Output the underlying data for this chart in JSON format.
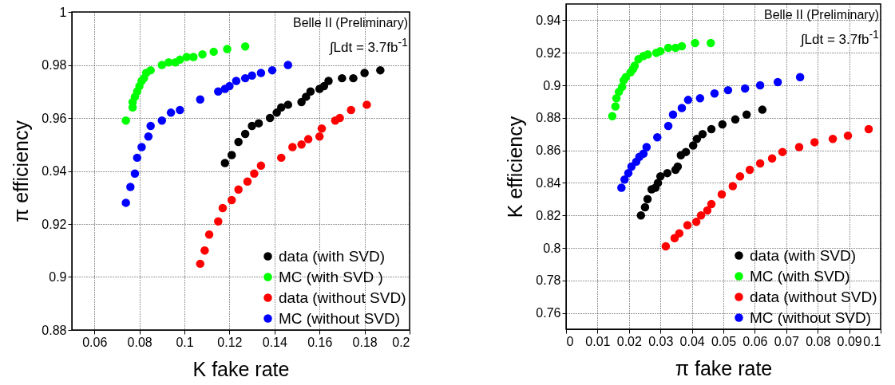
{
  "chart_data": [
    {
      "type": "scatter",
      "xlabel": "K fake rate",
      "ylabel": "π efficiency",
      "xlim": [
        0.05,
        0.2
      ],
      "ylim": [
        0.88,
        1
      ],
      "xticks": [
        0.06,
        0.08,
        0.1,
        0.12,
        0.14,
        0.16,
        0.18,
        0.2
      ],
      "yticks": [
        0.88,
        0.9,
        0.92,
        0.94,
        0.96,
        0.98,
        1
      ],
      "grid": true,
      "legend": "bottom right",
      "marker": "circle",
      "annotations": [
        "Belle II  (Preliminary)",
        "∫Ldt = 3.7fb$^{-1}$"
      ],
      "series": [
        {
          "name": "data (with SVD)",
          "color": "#000000",
          "x": [
            0.118,
            0.121,
            0.124,
            0.127,
            0.13,
            0.133,
            0.138,
            0.141,
            0.143,
            0.146,
            0.152,
            0.154,
            0.156,
            0.16,
            0.162,
            0.164,
            0.17,
            0.175,
            0.18,
            0.187
          ],
          "values": [
            0.943,
            0.946,
            0.951,
            0.954,
            0.957,
            0.958,
            0.96,
            0.962,
            0.964,
            0.965,
            0.966,
            0.968,
            0.97,
            0.971,
            0.972,
            0.974,
            0.975,
            0.975,
            0.977,
            0.978
          ]
        },
        {
          "name": "MC (with SVD )",
          "color": "#00ff00",
          "x": [
            0.074,
            0.077,
            0.077,
            0.078,
            0.079,
            0.08,
            0.081,
            0.082,
            0.083,
            0.085,
            0.09,
            0.093,
            0.096,
            0.098,
            0.101,
            0.104,
            0.108,
            0.113,
            0.119,
            0.127
          ],
          "values": [
            0.959,
            0.964,
            0.966,
            0.968,
            0.97,
            0.972,
            0.974,
            0.975,
            0.977,
            0.978,
            0.98,
            0.981,
            0.981,
            0.982,
            0.983,
            0.983,
            0.984,
            0.985,
            0.986,
            0.987
          ]
        },
        {
          "name": "data (without SVD)",
          "color": "#ff0000",
          "x": [
            0.107,
            0.109,
            0.111,
            0.115,
            0.117,
            0.121,
            0.124,
            0.128,
            0.131,
            0.134,
            0.143,
            0.148,
            0.152,
            0.155,
            0.16,
            0.161,
            0.167,
            0.169,
            0.174,
            0.181
          ],
          "values": [
            0.905,
            0.91,
            0.916,
            0.921,
            0.926,
            0.929,
            0.933,
            0.936,
            0.939,
            0.942,
            0.945,
            0.949,
            0.95,
            0.952,
            0.953,
            0.956,
            0.959,
            0.96,
            0.963,
            0.965
          ]
        },
        {
          "name": "MC (without SVD)",
          "color": "#0000ff",
          "x": [
            0.074,
            0.076,
            0.078,
            0.079,
            0.081,
            0.084,
            0.085,
            0.09,
            0.094,
            0.098,
            0.107,
            0.115,
            0.118,
            0.12,
            0.123,
            0.127,
            0.13,
            0.134,
            0.139,
            0.146
          ],
          "values": [
            0.928,
            0.934,
            0.939,
            0.945,
            0.949,
            0.953,
            0.957,
            0.959,
            0.962,
            0.963,
            0.967,
            0.97,
            0.971,
            0.972,
            0.974,
            0.975,
            0.976,
            0.977,
            0.978,
            0.98
          ]
        }
      ]
    },
    {
      "type": "scatter",
      "xlabel": "π fake rate",
      "ylabel": "K efficiency",
      "xlim": [
        0,
        0.1
      ],
      "ylim": [
        0.75,
        0.95
      ],
      "xticks": [
        0,
        0.01,
        0.02,
        0.03,
        0.04,
        0.05,
        0.06,
        0.07,
        0.08,
        0.09,
        0.1
      ],
      "yticks": [
        0.76,
        0.78,
        0.8,
        0.82,
        0.84,
        0.86,
        0.88,
        0.9,
        0.92,
        0.94
      ],
      "grid": true,
      "legend": "bottom right",
      "marker": "circle",
      "annotations": [
        "Belle II  (Preliminary)",
        "∫Ldt = 3.7fb$^{-1}$"
      ],
      "series": [
        {
          "name": "data (with SVD)",
          "color": "#000000",
          "x": [
            0.0238,
            0.0251,
            0.0259,
            0.0272,
            0.0284,
            0.0292,
            0.03,
            0.0322,
            0.0348,
            0.0355,
            0.0365,
            0.0381,
            0.0404,
            0.0416,
            0.0434,
            0.0462,
            0.0497,
            0.0538,
            0.0574,
            0.0624
          ],
          "values": [
            0.82,
            0.825,
            0.83,
            0.836,
            0.837,
            0.84,
            0.844,
            0.846,
            0.848,
            0.85,
            0.857,
            0.859,
            0.863,
            0.867,
            0.87,
            0.873,
            0.876,
            0.879,
            0.882,
            0.885
          ]
        },
        {
          "name": "MC (with SVD)",
          "color": "#00ff00",
          "x": [
            0.0147,
            0.0157,
            0.016,
            0.0168,
            0.0178,
            0.0183,
            0.019,
            0.0205,
            0.0213,
            0.0218,
            0.023,
            0.0246,
            0.026,
            0.0287,
            0.03,
            0.0325,
            0.0348,
            0.0368,
            0.041,
            0.046
          ],
          "values": [
            0.881,
            0.887,
            0.892,
            0.896,
            0.899,
            0.903,
            0.905,
            0.908,
            0.91,
            0.912,
            0.916,
            0.918,
            0.919,
            0.92,
            0.921,
            0.923,
            0.923,
            0.924,
            0.926,
            0.926
          ]
        },
        {
          "name": "data (without SVD)",
          "color": "#ff0000",
          "x": [
            0.0317,
            0.0345,
            0.036,
            0.0386,
            0.0414,
            0.0429,
            0.0449,
            0.0462,
            0.0495,
            0.053,
            0.0553,
            0.0584,
            0.0617,
            0.0655,
            0.0688,
            0.0741,
            0.079,
            0.0848,
            0.0896,
            0.0962
          ],
          "values": [
            0.801,
            0.806,
            0.809,
            0.814,
            0.816,
            0.82,
            0.823,
            0.827,
            0.833,
            0.838,
            0.844,
            0.848,
            0.852,
            0.855,
            0.859,
            0.862,
            0.865,
            0.867,
            0.869,
            0.873
          ]
        },
        {
          "name": "MC (without SVD)",
          "color": "#0000ff",
          "x": [
            0.0176,
            0.0186,
            0.0198,
            0.0208,
            0.0223,
            0.0233,
            0.0246,
            0.0256,
            0.029,
            0.0325,
            0.034,
            0.0368,
            0.0388,
            0.0426,
            0.0472,
            0.0515,
            0.0569,
            0.0617,
            0.0673,
            0.0744
          ],
          "values": [
            0.837,
            0.842,
            0.846,
            0.85,
            0.853,
            0.856,
            0.858,
            0.862,
            0.868,
            0.875,
            0.882,
            0.886,
            0.891,
            0.892,
            0.895,
            0.897,
            0.898,
            0.9,
            0.902,
            0.905
          ]
        }
      ]
    }
  ]
}
